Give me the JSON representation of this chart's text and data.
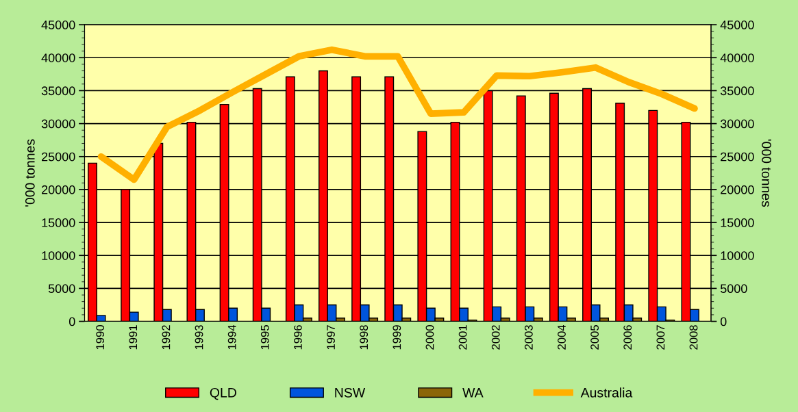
{
  "chart_data": {
    "type": "bar",
    "ylabel": "'000 tonnes",
    "y2label": "'000 tonnes",
    "categories": [
      "1990",
      "1991",
      "1992",
      "1993",
      "1994",
      "1995",
      "1996",
      "1997",
      "1998",
      "1999",
      "2000",
      "2001",
      "2002",
      "2003",
      "2004",
      "2005",
      "2006",
      "2007",
      "2008"
    ],
    "series": [
      {
        "name": "QLD",
        "color": "#ff0000",
        "values": [
          24000,
          20000,
          27000,
          30200,
          32900,
          35300,
          37100,
          38000,
          37100,
          37100,
          28800,
          30200,
          35000,
          34200,
          34600,
          35300,
          33100,
          32000,
          30200
        ]
      },
      {
        "name": "NSW",
        "color": "#0055dd",
        "values": [
          900,
          1400,
          1800,
          1800,
          2000,
          2000,
          2500,
          2500,
          2500,
          2500,
          2000,
          2000,
          2200,
          2200,
          2200,
          2500,
          2500,
          2200,
          1800
        ]
      },
      {
        "name": "WA",
        "color": "#8b6508",
        "values": [
          null,
          null,
          null,
          null,
          null,
          null,
          500,
          500,
          500,
          500,
          500,
          200,
          500,
          500,
          500,
          500,
          500,
          200,
          null
        ]
      },
      {
        "name": "Australia",
        "color": "#ffb000",
        "type": "line",
        "values": [
          25000,
          21500,
          29500,
          32000,
          34800,
          37500,
          40200,
          41200,
          40200,
          40200,
          31500,
          31700,
          37300,
          37200,
          37800,
          38500,
          36300,
          34500,
          32300
        ]
      }
    ],
    "ylim": [
      0,
      45000
    ],
    "yticks": [
      0,
      5000,
      10000,
      15000,
      20000,
      25000,
      30000,
      35000,
      40000,
      45000
    ],
    "y2lim": [
      0,
      45000
    ],
    "y2ticks": [
      0,
      5000,
      10000,
      15000,
      20000,
      25000,
      30000,
      35000,
      40000,
      45000
    ],
    "grid": "y",
    "legend": "bottom",
    "marker": "none",
    "line_style": "solid"
  }
}
